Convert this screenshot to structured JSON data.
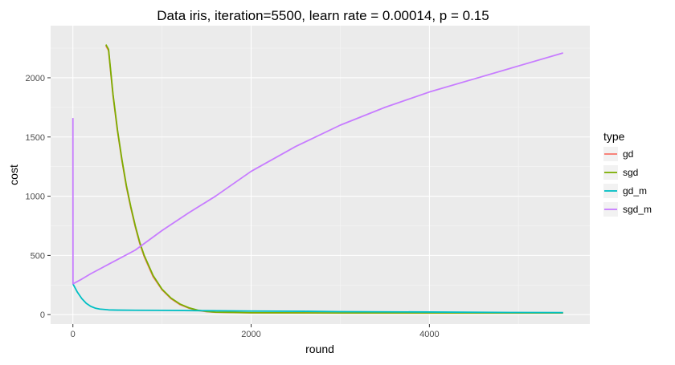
{
  "chart_data": {
    "type": "line",
    "title": "Data iris, iteration=5500, learn rate = 0.00014, p = 0.15",
    "xlabel": "round",
    "ylabel": "cost",
    "xlim": [
      -250,
      5800
    ],
    "ylim": [
      -80,
      2440
    ],
    "xticks": [
      0,
      2000,
      4000
    ],
    "xtick_labels": [
      "0",
      "2000",
      "4000"
    ],
    "yticks": [
      0,
      500,
      1000,
      1500,
      2000
    ],
    "ytick_labels": [
      "0",
      "500",
      "1000",
      "1500",
      "2000"
    ],
    "grid": true,
    "legend": {
      "title": "type",
      "position": "right"
    },
    "series": [
      {
        "name": "gd",
        "color": "#F8766D",
        "points": [
          [
            370,
            2270
          ],
          [
            400,
            2230
          ],
          [
            450,
            1850
          ],
          [
            500,
            1550
          ],
          [
            550,
            1300
          ],
          [
            600,
            1080
          ],
          [
            650,
            900
          ],
          [
            700,
            740
          ],
          [
            750,
            600
          ],
          [
            800,
            490
          ],
          [
            900,
            320
          ],
          [
            1000,
            210
          ],
          [
            1100,
            135
          ],
          [
            1200,
            85
          ],
          [
            1300,
            55
          ],
          [
            1400,
            35
          ],
          [
            1500,
            25
          ],
          [
            1600,
            20
          ],
          [
            2000,
            15
          ],
          [
            3000,
            13
          ],
          [
            4000,
            13
          ],
          [
            5500,
            13
          ]
        ]
      },
      {
        "name": "sgd",
        "color": "#7CAE00",
        "points": [
          [
            370,
            2280
          ],
          [
            400,
            2240
          ],
          [
            450,
            1860
          ],
          [
            500,
            1560
          ],
          [
            550,
            1310
          ],
          [
            600,
            1090
          ],
          [
            650,
            910
          ],
          [
            700,
            750
          ],
          [
            750,
            610
          ],
          [
            800,
            500
          ],
          [
            900,
            330
          ],
          [
            1000,
            215
          ],
          [
            1100,
            140
          ],
          [
            1200,
            90
          ],
          [
            1300,
            58
          ],
          [
            1400,
            38
          ],
          [
            1500,
            27
          ],
          [
            1600,
            21
          ],
          [
            2000,
            16
          ],
          [
            3000,
            14
          ],
          [
            4000,
            14
          ],
          [
            5500,
            14
          ]
        ]
      },
      {
        "name": "gd_m",
        "color": "#00BFC4",
        "points": [
          [
            0,
            260
          ],
          [
            50,
            190
          ],
          [
            100,
            135
          ],
          [
            150,
            95
          ],
          [
            200,
            70
          ],
          [
            250,
            55
          ],
          [
            300,
            47
          ],
          [
            400,
            40
          ],
          [
            500,
            38
          ],
          [
            700,
            37
          ],
          [
            1000,
            36
          ],
          [
            1500,
            33
          ],
          [
            2000,
            30
          ],
          [
            2600,
            28
          ],
          [
            3000,
            25
          ],
          [
            4000,
            22
          ],
          [
            5000,
            18
          ],
          [
            5500,
            17
          ]
        ]
      },
      {
        "name": "sgd_m",
        "color": "#C77CFF",
        "points": [
          [
            0,
            1660
          ],
          [
            1,
            260
          ],
          [
            100,
            300
          ],
          [
            200,
            345
          ],
          [
            300,
            385
          ],
          [
            400,
            425
          ],
          [
            500,
            465
          ],
          [
            700,
            545
          ],
          [
            1000,
            710
          ],
          [
            1300,
            860
          ],
          [
            1600,
            1000
          ],
          [
            2000,
            1210
          ],
          [
            2500,
            1420
          ],
          [
            3000,
            1600
          ],
          [
            3500,
            1750
          ],
          [
            4000,
            1880
          ],
          [
            4500,
            1990
          ],
          [
            5000,
            2100
          ],
          [
            5500,
            2210
          ]
        ]
      }
    ]
  }
}
